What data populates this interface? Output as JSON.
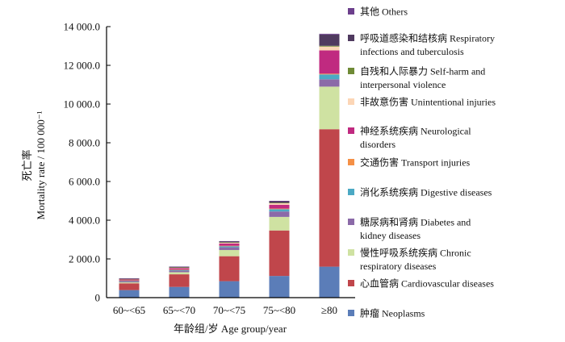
{
  "chart_data": {
    "type": "bar",
    "stacked": true,
    "title": "",
    "xlabel": "年龄组/岁 Age group/year",
    "ylabel_cn": "死亡率",
    "ylabel": "Mortality rate / 100 000⁻¹",
    "ylim": [
      0,
      14000
    ],
    "yticks": [
      0,
      2000,
      4000,
      6000,
      8000,
      10000,
      12000,
      14000
    ],
    "ytick_labels": [
      "0",
      "2 000.0",
      "4 000.0",
      "6 000.0",
      "8 000.0",
      "10 000.0",
      "12 000.0",
      "14 000.0"
    ],
    "categories": [
      "60~<65",
      "65~<70",
      "70~<75",
      "75~<80",
      "≥80"
    ],
    "legend_position": "right",
    "series": [
      {
        "name": "肿瘤 Neoplasms",
        "lines": [
          "肿瘤 Neoplasms"
        ],
        "color": "#5b7db8",
        "values": [
          390,
          555,
          850,
          1120,
          1600
        ]
      },
      {
        "name": "心血管病 Cardiovascular diseases",
        "lines": [
          "心血管病 Cardiovascular diseases"
        ],
        "color": "#c0464b",
        "values": [
          350,
          650,
          1290,
          2350,
          7100
        ]
      },
      {
        "name": "慢性呼吸系统疾病 Chronic respiratory diseases",
        "lines": [
          "慢性呼吸系统疾病 Chronic",
          "respiratory diseases"
        ],
        "color": "#cfe2a2",
        "values": [
          50,
          110,
          320,
          700,
          2200
        ]
      },
      {
        "name": "糖尿病和肾病 Diabetes and kidney diseases",
        "lines": [
          "糖尿病和肾病 Diabetes and",
          "kidney diseases"
        ],
        "color": "#8b6aa8",
        "values": [
          60,
          80,
          140,
          280,
          380
        ]
      },
      {
        "name": "消化系统疾病 Digestive diseases",
        "lines": [
          "消化系统疾病 Digestive diseases"
        ],
        "color": "#4ba9c4",
        "values": [
          30,
          40,
          60,
          120,
          250
        ]
      },
      {
        "name": "交通伤害 Transport injuries",
        "lines": [
          "交通伤害 Transport injuries"
        ],
        "color": "#f59046",
        "values": [
          10,
          15,
          20,
          30,
          40
        ]
      },
      {
        "name": "神经系统疾病 Neurological disorders",
        "lines": [
          "神经系统疾病 Neurological",
          "disorders"
        ],
        "color": "#c02a80",
        "values": [
          50,
          70,
          120,
          200,
          1200
        ]
      },
      {
        "name": "非故意伤害 Unintentional injuries",
        "lines": [
          "非故意伤害 Unintentional injuries"
        ],
        "color": "#fcd6b6",
        "values": [
          25,
          35,
          50,
          80,
          200
        ]
      },
      {
        "name": "自残和人际暴力 Self-harm and interpersonal violence",
        "lines": [
          "自残和人际暴力 Self-harm and",
          "interpersonal violence"
        ],
        "color": "#6f8a36",
        "values": [
          5,
          10,
          10,
          20,
          40
        ]
      },
      {
        "name": "呼吸道感染和结核病 Respiratory infections and tuberculosis",
        "lines": [
          "呼吸道感染和结核病 Respiratory",
          "infections and tuberculosis"
        ],
        "color": "#4f3a5f",
        "values": [
          25,
          30,
          50,
          80,
          580
        ]
      },
      {
        "name": "其他 Others",
        "lines": [
          "其他 Others"
        ],
        "color": "#6c3f8c",
        "values": [
          5,
          10,
          10,
          20,
          40
        ]
      }
    ]
  }
}
